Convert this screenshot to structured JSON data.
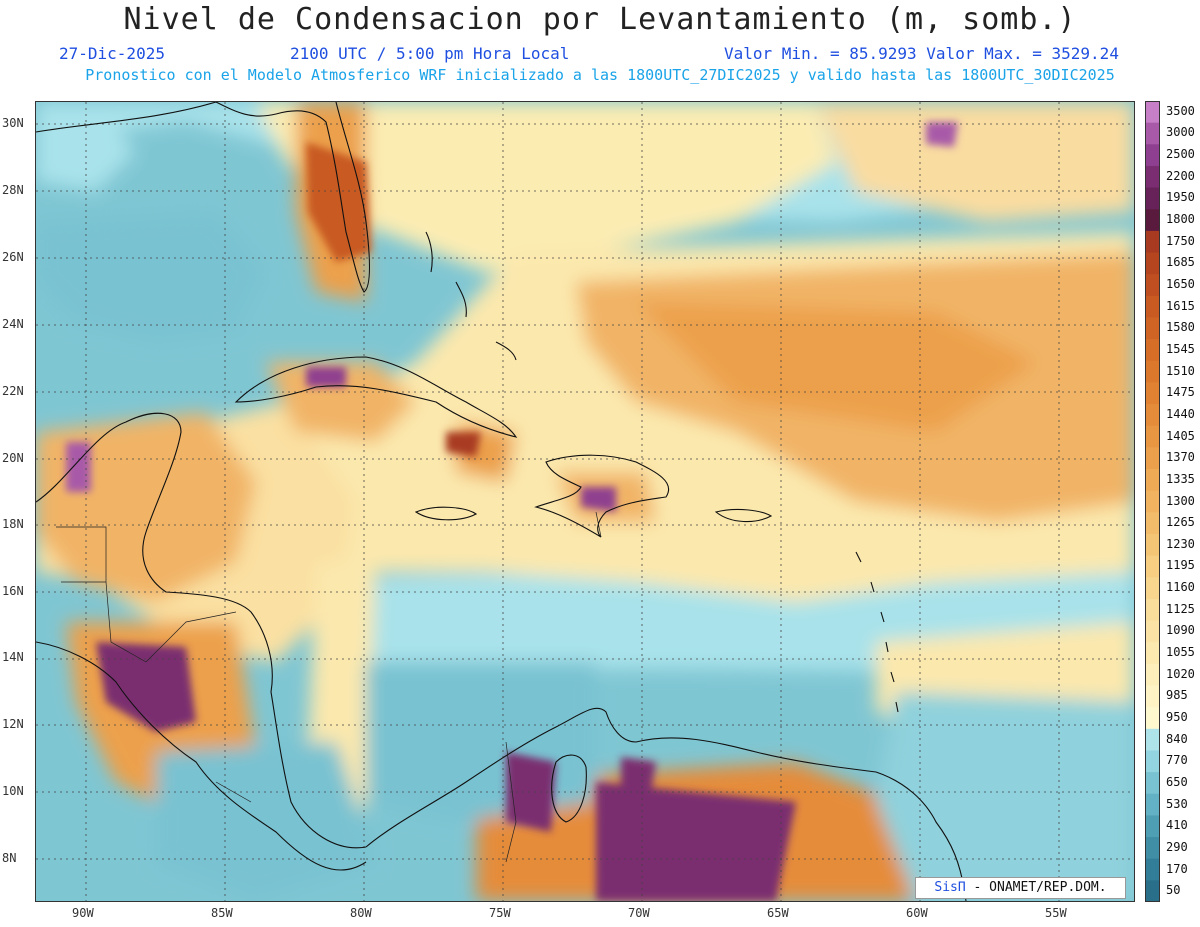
{
  "header": {
    "title": "Nivel de Condensacion por Levantamiento (m, somb.)",
    "date": "27-Dic-2025",
    "time": "2100 UTC / 5:00 pm Hora Local",
    "range": "Valor Min. = 85.9293  Valor Max. = 3529.24",
    "subtitle": "Pronostico con el Modelo Atmosferico WRF inicializado a las 1800UTC_27DIC2025 y valido hasta las  1800UTC_30DIC2025"
  },
  "map": {
    "lon_range": [
      -92,
      -52.5
    ],
    "lat_range": [
      6.8,
      30.7
    ],
    "lon_ticks": [
      "90W",
      "85W",
      "80W",
      "75W",
      "70W",
      "65W",
      "60W",
      "55W"
    ],
    "lat_ticks": [
      "30N",
      "28N",
      "26N",
      "24N",
      "22N",
      "20N",
      "18N",
      "16N",
      "14N",
      "12N",
      "10N",
      "8N"
    ],
    "grid": true
  },
  "colorbar": {
    "labels": [
      "3500",
      "3000",
      "2500",
      "2200",
      "1950",
      "1800",
      "1750",
      "1685",
      "1650",
      "1615",
      "1580",
      "1545",
      "1510",
      "1475",
      "1440",
      "1405",
      "1370",
      "1335",
      "1300",
      "1265",
      "1230",
      "1195",
      "1160",
      "1125",
      "1090",
      "1055",
      "1020",
      "985",
      "950",
      "840",
      "770",
      "650",
      "530",
      "410",
      "290",
      "170",
      "50"
    ],
    "colors": [
      "#c77fc7",
      "#a85aa8",
      "#8f3f8f",
      "#7a2d70",
      "#68225a",
      "#5a1a3e",
      "#a83a22",
      "#b5451f",
      "#bf4f20",
      "#c85a22",
      "#cf6424",
      "#d66e28",
      "#dc782c",
      "#e18232",
      "#e58c3a",
      "#e99642",
      "#eca04b",
      "#efaa55",
      "#f1b35f",
      "#f3bc6a",
      "#f5c576",
      "#f7ce82",
      "#f8d68e",
      "#f9dd9a",
      "#fae3a5",
      "#fbe9b0",
      "#fcefbb",
      "#fdf3c4",
      "#fef8cf",
      "#aee3ea",
      "#92d4df",
      "#79c2d1",
      "#63b1c4",
      "#4f9fb4",
      "#3f8ea6",
      "#327d97",
      "#2a6f8a"
    ]
  },
  "credit": {
    "sis": "SisΠ",
    "text": " - ONAMET/REP.DOM."
  }
}
